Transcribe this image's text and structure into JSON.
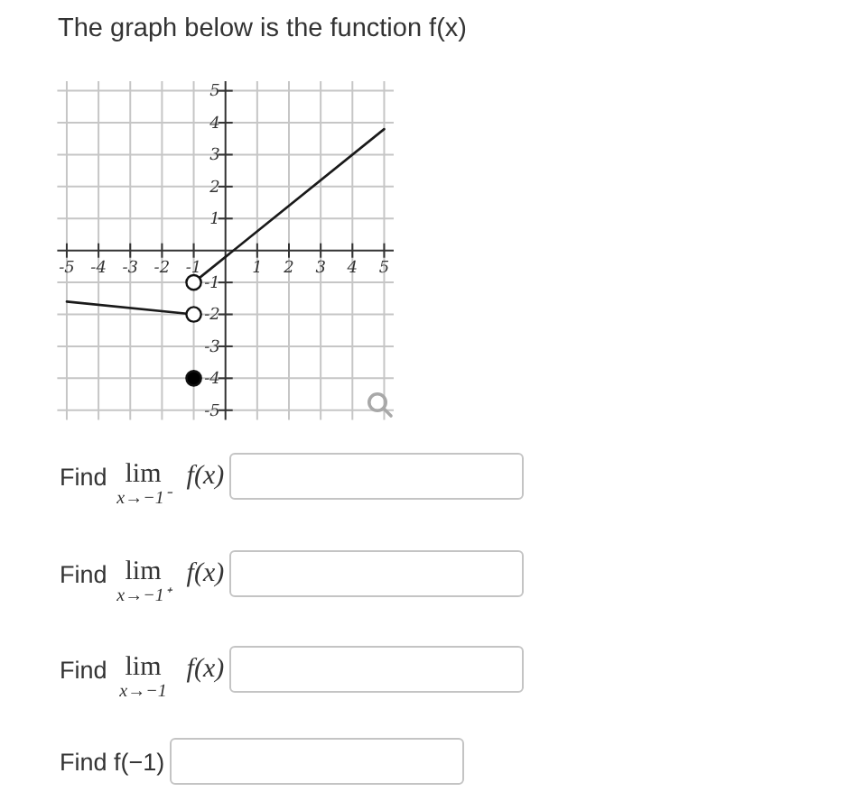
{
  "chart_data": {
    "type": "line",
    "title": "The graph below is the function f(x)",
    "series": [
      {
        "x": [
          -5,
          -1
        ],
        "values": [
          -1.6,
          -2
        ],
        "color": "#1a1a1a"
      },
      {
        "x": [
          -1,
          5
        ],
        "values": [
          -1,
          3.8
        ],
        "color": "#1a1a1a"
      },
      {
        "type": "scatter",
        "x": [
          -1,
          -1
        ],
        "values": [
          -1,
          -2
        ],
        "color": "#ffffff",
        "marker": "circle"
      },
      {
        "type": "scatter",
        "x": [
          -1
        ],
        "values": [
          -4
        ],
        "color": "#000000",
        "marker": "circle"
      }
    ],
    "xlim": [
      -5.3,
      5.3
    ],
    "ylim": [
      -5.3,
      5.3
    ],
    "xticks": [
      -5,
      -4,
      -3,
      -2,
      -1,
      1,
      2,
      3,
      4,
      5
    ],
    "yticks": [
      -5,
      -4,
      -3,
      -2,
      -1,
      1,
      2,
      3,
      4,
      5
    ],
    "grid": true,
    "annotations": [
      "Find lim$_{x→−1⁻}$ f(x)",
      "Find lim$_{x→−1⁺}$ f(x)",
      "Find lim$_{x→−1}$ f(x)",
      "Find f(−1)"
    ]
  }
}
